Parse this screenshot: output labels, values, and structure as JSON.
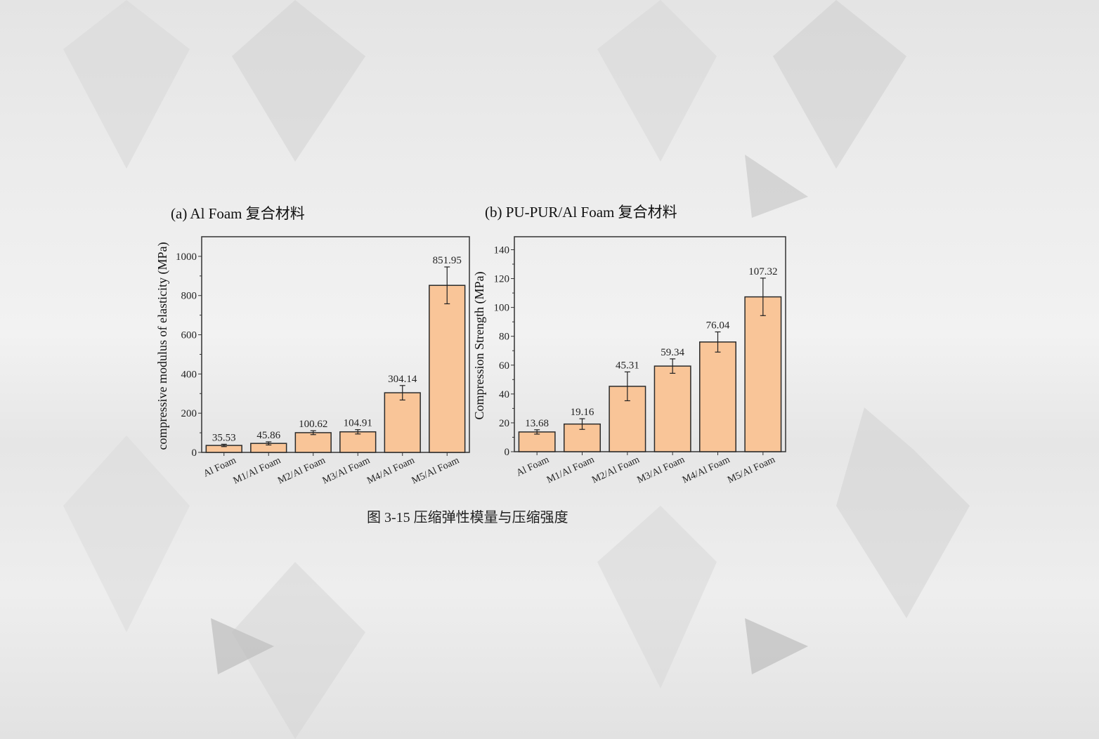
{
  "caption": "图 3-15  压缩弹性模量与压缩强度",
  "colors": {
    "bar_fill": "#f9c598",
    "bar_stroke": "#2a2a2a",
    "background": "#e8e8e8"
  },
  "chart_data": [
    {
      "type": "bar",
      "title": "(a) Al Foam 复合材料",
      "xlabel": "",
      "ylabel": "compressive modulus of elasticity (MPa)",
      "categories": [
        "Al Foam",
        "M1/Al Foam",
        "M2/Al Foam",
        "M3/Al Foam",
        "M4/Al Foam",
        "M5/Al Foam"
      ],
      "values": [
        35.53,
        45.86,
        100.62,
        104.91,
        304.14,
        851.95
      ],
      "errors": [
        6,
        8,
        10,
        11,
        37,
        94
      ],
      "data_labels": [
        "35.53",
        "45.86",
        "100.62",
        "104.91",
        "304.14",
        "851.95"
      ],
      "ylim": [
        0,
        1100
      ],
      "yticks": [
        0,
        200,
        400,
        600,
        800,
        1000
      ],
      "grid": false
    },
    {
      "type": "bar",
      "title": "(b) PU-PUR/Al Foam 复合材料",
      "xlabel": "",
      "ylabel": "Compression Strength (MPa)",
      "categories": [
        "Al Foam",
        "M1/Al Foam",
        "M2/Al Foam",
        "M3/Al Foam",
        "M4/Al Foam",
        "M5/Al Foam"
      ],
      "values": [
        13.68,
        19.16,
        45.31,
        59.34,
        76.04,
        107.32
      ],
      "errors": [
        1.5,
        3.7,
        10,
        5,
        7,
        13
      ],
      "data_labels": [
        "13.68",
        "19.16",
        "45.31",
        "59.34",
        "76.04",
        "107.32"
      ],
      "ylim": [
        0,
        149
      ],
      "yticks": [
        0,
        20,
        40,
        60,
        80,
        100,
        120,
        140
      ],
      "grid": false
    }
  ]
}
